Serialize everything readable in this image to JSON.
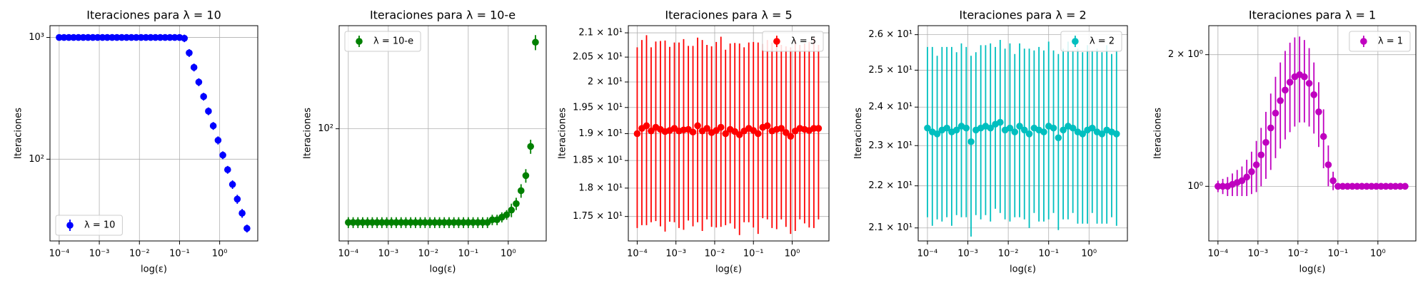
{
  "chart_data": [
    {
      "type": "errorbar",
      "title": "Iteraciones para λ = 10",
      "x_label": "log(ε)",
      "y_label": "Iteraciones",
      "x": [
        0.0001,
        0.000132,
        0.000174,
        0.000229,
        0.000302,
        0.000398,
        0.000525,
        0.000692,
        0.000912,
        0.0012,
        0.00158,
        0.00209,
        0.00275,
        0.00363,
        0.00479,
        0.00631,
        0.00832,
        0.011,
        0.0145,
        0.0191,
        0.0251,
        0.0331,
        0.0437,
        0.0575,
        0.0759,
        0.1,
        0.132,
        0.174,
        0.229,
        0.302,
        0.398,
        0.525,
        0.692,
        0.912,
        1.2,
        1.58,
        2.09,
        2.75,
        3.63,
        4.79
      ],
      "series": [
        {
          "name": "λ = 10",
          "color": "#0000ff",
          "values": [
            1000,
            1000,
            1000,
            1000,
            1000,
            1000,
            1000,
            1000,
            1000,
            1000,
            1000,
            1000,
            1000,
            1000,
            1000,
            1000,
            1000,
            1000,
            1000,
            1000,
            1000,
            1000,
            1000,
            1000,
            1000,
            1000,
            985,
            747,
            568,
            430,
            327,
            248,
            188,
            143,
            108,
            82,
            62,
            47,
            36,
            27
          ],
          "errors": [
            20,
            20,
            20,
            20,
            20,
            20,
            20,
            20,
            20,
            20,
            20,
            20,
            20,
            20,
            20,
            20,
            20,
            20,
            20,
            20,
            20,
            20,
            20,
            20,
            20,
            20,
            70,
            55,
            42,
            32,
            24,
            18,
            14,
            11,
            8,
            6,
            5,
            4,
            3,
            2
          ]
        }
      ],
      "xscale": "log",
      "yscale": "log",
      "xlim": [
        5.9e-05,
        8.9
      ],
      "ylim": [
        21.3,
        1250
      ],
      "xticks": [
        {
          "value": 0.0001,
          "label": "10⁻⁴"
        },
        {
          "value": 0.001,
          "label": "10⁻³"
        },
        {
          "value": 0.01,
          "label": "10⁻²"
        },
        {
          "value": 0.1,
          "label": "10⁻¹"
        },
        {
          "value": 1,
          "label": "10⁰"
        }
      ],
      "yticks": [
        {
          "value": 100,
          "label": "10²"
        },
        {
          "value": 1000,
          "label": "10³"
        }
      ],
      "grid": true,
      "legend": "lower left"
    },
    {
      "type": "errorbar",
      "title": "Iteraciones para λ = 10-e",
      "x_label": "log(ε)",
      "y_label": "Iteraciones",
      "x": [
        0.0001,
        0.000132,
        0.000174,
        0.000229,
        0.000302,
        0.000398,
        0.000525,
        0.000692,
        0.000912,
        0.0012,
        0.00158,
        0.00209,
        0.00275,
        0.00363,
        0.00479,
        0.00631,
        0.00832,
        0.011,
        0.0145,
        0.0191,
        0.0251,
        0.0331,
        0.0437,
        0.0575,
        0.0759,
        0.1,
        0.132,
        0.174,
        0.229,
        0.302,
        0.398,
        0.525,
        0.692,
        0.912,
        1.2,
        1.58,
        2.09,
        2.75,
        3.63,
        4.79
      ],
      "series": [
        {
          "name": "λ = 10-e",
          "color": "#008000",
          "values": [
            25,
            25,
            25,
            25,
            25,
            25,
            25,
            25,
            25,
            25,
            25,
            25,
            25,
            25,
            25,
            25,
            25,
            25,
            25,
            25,
            25,
            25,
            25,
            25,
            25,
            25,
            25,
            25,
            25,
            25,
            26,
            26,
            27,
            28,
            30,
            33,
            40,
            50,
            77,
            360
          ],
          "errors": [
            2,
            2,
            2,
            2,
            2,
            2,
            2,
            2,
            2,
            2,
            2,
            2,
            2,
            2,
            2,
            2,
            2,
            2,
            2,
            2,
            2,
            2,
            2,
            2,
            2,
            2,
            2,
            2,
            2,
            2,
            2,
            2,
            2,
            2,
            3,
            3,
            4,
            5,
            8,
            40
          ]
        }
      ],
      "xscale": "log",
      "yscale": "log",
      "xlim": [
        5.9e-05,
        8.9
      ],
      "ylim": [
        19,
        460
      ],
      "xticks": [
        {
          "value": 0.0001,
          "label": "10⁻⁴"
        },
        {
          "value": 0.001,
          "label": "10⁻³"
        },
        {
          "value": 0.01,
          "label": "10⁻²"
        },
        {
          "value": 0.1,
          "label": "10⁻¹"
        },
        {
          "value": 1,
          "label": "10⁰"
        }
      ],
      "yticks": [
        {
          "value": 100,
          "label": "10²"
        }
      ],
      "grid": true,
      "legend": "upper left"
    },
    {
      "type": "errorbar",
      "title": "Iteraciones para λ = 5",
      "x_label": "log(ε)",
      "y_label": "Iteraciones",
      "x": [
        0.0001,
        0.000132,
        0.000174,
        0.000229,
        0.000302,
        0.000398,
        0.000525,
        0.000692,
        0.000912,
        0.0012,
        0.00158,
        0.00209,
        0.00275,
        0.00363,
        0.00479,
        0.00631,
        0.00832,
        0.011,
        0.0145,
        0.0191,
        0.0251,
        0.0331,
        0.0437,
        0.0575,
        0.0759,
        0.1,
        0.132,
        0.174,
        0.229,
        0.302,
        0.398,
        0.525,
        0.692,
        0.912,
        1.2,
        1.58,
        2.09,
        2.75,
        3.63,
        4.79
      ],
      "series": [
        {
          "name": "λ = 5",
          "color": "#ff0000",
          "values": [
            19.0,
            19.1,
            19.15,
            19.05,
            19.12,
            19.08,
            19.04,
            19.06,
            19.1,
            19.05,
            19.07,
            19.08,
            19.03,
            19.15,
            19.05,
            19.1,
            19.02,
            19.06,
            19.12,
            19.0,
            19.08,
            19.04,
            18.98,
            19.05,
            19.1,
            19.06,
            19.0,
            19.12,
            19.15,
            19.05,
            19.08,
            19.1,
            19.02,
            18.95,
            19.05,
            19.1,
            19.08,
            19.06,
            19.1,
            19.1
          ],
          "errors": [
            1.7,
            1.75,
            1.8,
            1.65,
            1.7,
            1.75,
            1.8,
            1.65,
            1.7,
            1.75,
            1.8,
            1.65,
            1.7,
            1.75,
            1.8,
            1.65,
            1.7,
            1.75,
            1.8,
            1.65,
            1.7,
            1.75,
            1.8,
            1.65,
            1.7,
            1.75,
            1.8,
            1.65,
            1.7,
            1.75,
            1.8,
            1.65,
            1.7,
            1.75,
            1.8,
            1.65,
            1.7,
            1.75,
            1.8,
            1.65
          ]
        }
      ],
      "xscale": "log",
      "yscale": "log",
      "xlim": [
        5.9e-05,
        8.9
      ],
      "ylim": [
        17.08,
        21.15
      ],
      "xticks": [
        {
          "value": 0.0001,
          "label": "10⁻⁴"
        },
        {
          "value": 0.001,
          "label": "10⁻³"
        },
        {
          "value": 0.01,
          "label": "10⁻²"
        },
        {
          "value": 0.1,
          "label": "10⁻¹"
        },
        {
          "value": 1,
          "label": "10⁰"
        }
      ],
      "yticks": [
        {
          "value": 17.5,
          "label": "1.75 × 10¹"
        },
        {
          "value": 18,
          "label": "1.8 × 10¹"
        },
        {
          "value": 18.5,
          "label": "1.85 × 10¹"
        },
        {
          "value": 19,
          "label": "1.9 × 10¹"
        },
        {
          "value": 19.5,
          "label": "1.95 × 10¹"
        },
        {
          "value": 20,
          "label": "2 × 10¹"
        },
        {
          "value": 20.5,
          "label": "2.05 × 10¹"
        },
        {
          "value": 21,
          "label": "2.1 × 10¹"
        }
      ],
      "grid": true,
      "legend": "upper right"
    },
    {
      "type": "errorbar",
      "title": "Iteraciones para λ = 2",
      "x_label": "log(ε)",
      "y_label": "Iteraciones",
      "x": [
        0.0001,
        0.000132,
        0.000174,
        0.000229,
        0.000302,
        0.000398,
        0.000525,
        0.000692,
        0.000912,
        0.0012,
        0.00158,
        0.00209,
        0.00275,
        0.00363,
        0.00479,
        0.00631,
        0.00832,
        0.011,
        0.0145,
        0.0191,
        0.0251,
        0.0331,
        0.0437,
        0.0575,
        0.0759,
        0.1,
        0.132,
        0.174,
        0.229,
        0.302,
        0.398,
        0.525,
        0.692,
        0.912,
        1.2,
        1.58,
        2.09,
        2.75,
        3.63,
        4.79
      ],
      "series": [
        {
          "name": "λ = 2",
          "color": "#00bfbf",
          "values": [
            23.45,
            23.35,
            23.3,
            23.4,
            23.45,
            23.35,
            23.4,
            23.5,
            23.45,
            23.1,
            23.4,
            23.45,
            23.5,
            23.45,
            23.55,
            23.6,
            23.4,
            23.45,
            23.35,
            23.5,
            23.4,
            23.3,
            23.45,
            23.4,
            23.35,
            23.5,
            23.45,
            23.2,
            23.4,
            23.5,
            23.45,
            23.35,
            23.3,
            23.4,
            23.45,
            23.35,
            23.3,
            23.4,
            23.35,
            23.3
          ],
          "errors": [
            2.2,
            2.3,
            2.1,
            2.25,
            2.2,
            2.3,
            2.1,
            2.25,
            2.2,
            2.3,
            2.1,
            2.25,
            2.2,
            2.3,
            2.1,
            2.25,
            2.2,
            2.3,
            2.1,
            2.25,
            2.2,
            2.3,
            2.1,
            2.25,
            2.2,
            2.3,
            2.1,
            2.25,
            2.2,
            2.3,
            2.1,
            2.25,
            2.2,
            2.3,
            2.1,
            2.25,
            2.2,
            2.3,
            2.1,
            2.25
          ]
        }
      ],
      "xscale": "log",
      "yscale": "log",
      "xlim": [
        5.9e-05,
        8.9
      ],
      "ylim": [
        20.7,
        26.26
      ],
      "xticks": [
        {
          "value": 0.0001,
          "label": "10⁻⁴"
        },
        {
          "value": 0.001,
          "label": "10⁻³"
        },
        {
          "value": 0.01,
          "label": "10⁻²"
        },
        {
          "value": 0.1,
          "label": "10⁻¹"
        },
        {
          "value": 1,
          "label": "10⁰"
        }
      ],
      "yticks": [
        {
          "value": 21,
          "label": "2.1 × 10¹"
        },
        {
          "value": 22,
          "label": "2.2 × 10¹"
        },
        {
          "value": 23,
          "label": "2.3 × 10¹"
        },
        {
          "value": 24,
          "label": "2.4 × 10¹"
        },
        {
          "value": 25,
          "label": "2.5 × 10¹"
        },
        {
          "value": 26,
          "label": "2.6 × 10¹"
        }
      ],
      "grid": true,
      "legend": "upper right"
    },
    {
      "type": "errorbar",
      "title": "Iteraciones para λ = 1",
      "x_label": "log(ε)",
      "y_label": "Iteraciones",
      "x": [
        0.0001,
        0.000132,
        0.000174,
        0.000229,
        0.000302,
        0.000398,
        0.000525,
        0.000692,
        0.000912,
        0.0012,
        0.00158,
        0.00209,
        0.00275,
        0.00363,
        0.00479,
        0.00631,
        0.00832,
        0.011,
        0.0145,
        0.0191,
        0.0251,
        0.0331,
        0.0437,
        0.0575,
        0.0759,
        0.1,
        0.132,
        0.174,
        0.229,
        0.302,
        0.398,
        0.525,
        0.692,
        0.912,
        1.2,
        1.58,
        2.09,
        2.75,
        3.63,
        4.79
      ],
      "series": [
        {
          "name": "λ = 1",
          "color": "#bf00bf",
          "values": [
            1.0,
            1.0,
            1.0,
            1.01,
            1.02,
            1.03,
            1.05,
            1.08,
            1.12,
            1.18,
            1.26,
            1.36,
            1.47,
            1.57,
            1.66,
            1.73,
            1.78,
            1.8,
            1.78,
            1.72,
            1.62,
            1.48,
            1.3,
            1.12,
            1.03,
            1.0,
            1.0,
            1.0,
            1.0,
            1.0,
            1.0,
            1.0,
            1.0,
            1.0,
            1.0,
            1.0,
            1.0,
            1.0,
            1.0,
            1.0
          ],
          "errors": [
            0.03,
            0.04,
            0.05,
            0.06,
            0.07,
            0.08,
            0.1,
            0.12,
            0.15,
            0.18,
            0.22,
            0.27,
            0.31,
            0.35,
            0.38,
            0.4,
            0.41,
            0.4,
            0.38,
            0.35,
            0.3,
            0.25,
            0.2,
            0.12,
            0.05,
            0.01,
            0.01,
            0.01,
            0.01,
            0.01,
            0.01,
            0.01,
            0.01,
            0.01,
            0.01,
            0.01,
            0.01,
            0.01,
            0.01,
            0.01
          ]
        }
      ],
      "xscale": "log",
      "yscale": "log",
      "xlim": [
        5.9e-05,
        8.9
      ],
      "ylim": [
        0.75,
        2.33
      ],
      "xticks": [
        {
          "value": 0.0001,
          "label": "10⁻⁴"
        },
        {
          "value": 0.001,
          "label": "10⁻³"
        },
        {
          "value": 0.01,
          "label": "10⁻²"
        },
        {
          "value": 0.1,
          "label": "10⁻¹"
        },
        {
          "value": 1,
          "label": "10⁰"
        }
      ],
      "yticks": [
        {
          "value": 1,
          "label": "10⁰"
        },
        {
          "value": 2,
          "label": "2 × 10⁰"
        }
      ],
      "grid": true,
      "legend": "upper right"
    }
  ]
}
